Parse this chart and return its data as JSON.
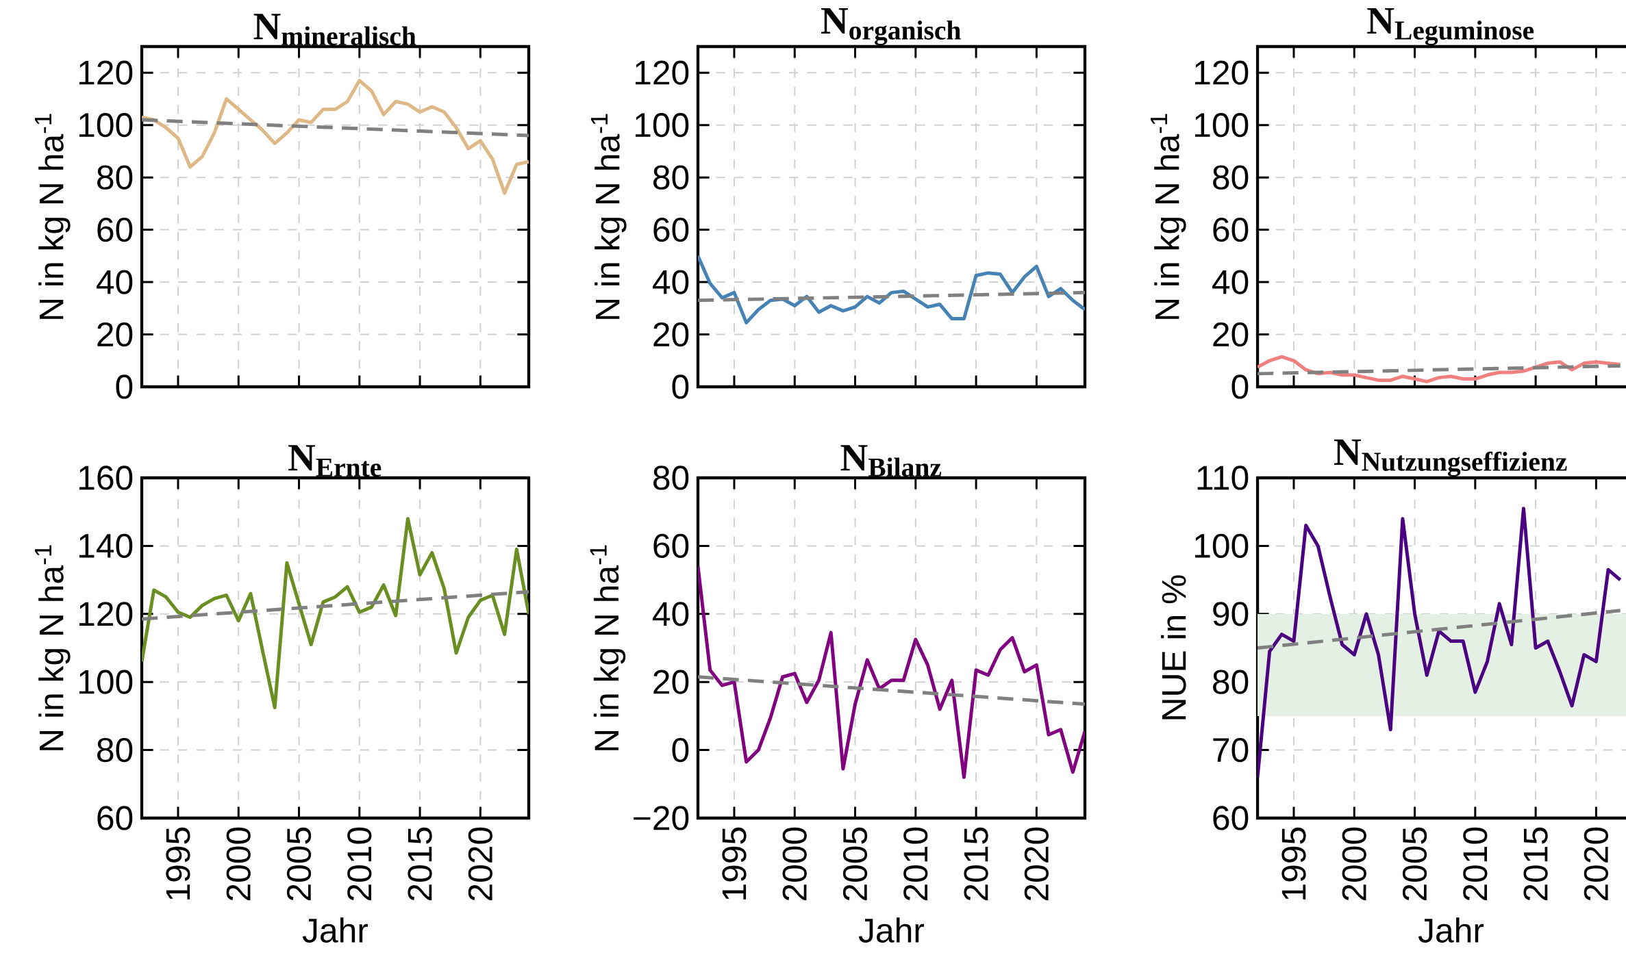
{
  "chart_data": [
    {
      "type": "line",
      "title": "\\mathbf{N_{mineralisch}}",
      "ylabel": "N in kg N ha$^{-1}$",
      "tick_labels": "y",
      "grid": true,
      "xlim": [
        1992,
        2024
      ],
      "ylim": [
        0,
        130
      ],
      "xticks": [
        1995,
        2000,
        2005,
        2010,
        2015,
        2020
      ],
      "yticks": [
        0,
        20,
        40,
        60,
        80,
        100,
        120
      ],
      "x": [
        1992,
        1993,
        1994,
        1995,
        1996,
        1997,
        1998,
        1999,
        2000,
        2001,
        2002,
        2003,
        2004,
        2005,
        2006,
        2007,
        2008,
        2009,
        2010,
        2011,
        2012,
        2013,
        2014,
        2015,
        2016,
        2017,
        2018,
        2019,
        2020,
        2021,
        2022,
        2023,
        2024
      ],
      "series": [
        {
          "color": "#deb887",
          "values": [
            103,
            102,
            99,
            95,
            84,
            88,
            97,
            110,
            106,
            102,
            98,
            93,
            97,
            102,
            101,
            106,
            106,
            109,
            117,
            113,
            104,
            109,
            108,
            105,
            107,
            105,
            99,
            91,
            94,
            87,
            74,
            85,
            86
          ]
        },
        {
          "type": "line",
          "line_style": "dashed",
          "color": "#808080",
          "x": [
            1992,
            2024
          ],
          "values": [
            102,
            96
          ]
        }
      ]
    },
    {
      "type": "line",
      "title": "\\mathbf{N_{organisch}}",
      "ylabel": "N in kg N ha$^{-1}$",
      "tick_labels": "y",
      "grid": true,
      "xlim": [
        1992,
        2024
      ],
      "ylim": [
        0,
        130
      ],
      "xticks": [
        1995,
        2000,
        2005,
        2010,
        2015,
        2020
      ],
      "yticks": [
        0,
        20,
        40,
        60,
        80,
        100,
        120
      ],
      "x": [
        1992,
        1993,
        1994,
        1995,
        1996,
        1997,
        1998,
        1999,
        2000,
        2001,
        2002,
        2003,
        2004,
        2005,
        2006,
        2007,
        2008,
        2009,
        2010,
        2011,
        2012,
        2013,
        2014,
        2015,
        2016,
        2017,
        2018,
        2019,
        2020,
        2021,
        2022,
        2023,
        2024
      ],
      "series": [
        {
          "color": "#4682b4",
          "values": [
            50,
            39.5,
            34,
            36,
            24.5,
            29.5,
            33,
            33.5,
            31,
            34.5,
            28.5,
            31,
            29,
            30.5,
            34.5,
            32,
            36,
            36.5,
            33.5,
            30.5,
            31.5,
            26,
            26,
            42.5,
            43.5,
            43,
            36,
            42,
            46,
            34.5,
            37.5,
            33,
            29.5
          ]
        },
        {
          "type": "line",
          "line_style": "dashed",
          "color": "#808080",
          "x": [
            1992,
            2024
          ],
          "values": [
            33,
            36
          ]
        }
      ]
    },
    {
      "type": "line",
      "title": "\\mathbf{N_{Leguminose}}",
      "ylabel": "N in kg N ha$^{-1}$",
      "tick_labels": "y",
      "grid": true,
      "xlim": [
        1992,
        2024
      ],
      "ylim": [
        0,
        130
      ],
      "xticks": [
        1995,
        2000,
        2005,
        2010,
        2015,
        2020
      ],
      "yticks": [
        0,
        20,
        40,
        60,
        80,
        100,
        120
      ],
      "series": [
        {
          "color": "#f08080",
          "x": [
            1992,
            1993,
            1994,
            1995,
            1996,
            1997,
            1998,
            1999,
            2000,
            2001,
            2002,
            2003,
            2004,
            2005,
            2006,
            2007,
            2008,
            2009,
            2010,
            2011,
            2012,
            2013,
            2014,
            2015,
            2016,
            2017,
            2018,
            2019,
            2020,
            2021,
            2022
          ],
          "values": [
            7.5,
            10,
            11.5,
            10,
            6.5,
            5,
            5.5,
            4.5,
            4.5,
            3.5,
            2.5,
            2.5,
            4,
            3,
            2,
            3.5,
            4,
            3,
            3,
            4.5,
            5.5,
            5.5,
            6,
            7.5,
            9,
            9.5,
            6.5,
            9,
            9.5,
            9,
            8.5
          ]
        },
        {
          "type": "line",
          "line_style": "dashed",
          "color": "#808080",
          "x": [
            1992,
            2022
          ],
          "values": [
            5,
            8
          ]
        }
      ]
    },
    {
      "type": "line",
      "title": "\\mathbf{N_{Ernte}}",
      "xlabel": "Jahr",
      "ylabel": "N in kg N ha$^{-1}$",
      "grid": true,
      "xlim": [
        1992,
        2024
      ],
      "ylim": [
        60,
        160
      ],
      "xticks": [
        1995,
        2000,
        2005,
        2010,
        2015,
        2020
      ],
      "yticks": [
        60,
        80,
        100,
        120,
        140,
        160
      ],
      "x": [
        1992,
        1993,
        1994,
        1995,
        1996,
        1997,
        1998,
        1999,
        2000,
        2001,
        2002,
        2003,
        2004,
        2005,
        2006,
        2007,
        2008,
        2009,
        2010,
        2011,
        2012,
        2013,
        2014,
        2015,
        2016,
        2017,
        2018,
        2019,
        2020,
        2021,
        2022,
        2023,
        2024
      ],
      "series": [
        {
          "color": "#6b8e23",
          "values": [
            106,
            127,
            125,
            120.5,
            119,
            122.5,
            124.5,
            125.5,
            118,
            126,
            109,
            92.5,
            135,
            123,
            111,
            123.5,
            125,
            128,
            120.5,
            122,
            128.5,
            119.5,
            148,
            131.5,
            138,
            127.5,
            108.5,
            119,
            124,
            125.5,
            114,
            139,
            120
          ]
        },
        {
          "type": "line",
          "line_style": "dashed",
          "color": "#808080",
          "x": [
            1992,
            2024
          ],
          "values": [
            118.5,
            126.5
          ]
        }
      ]
    },
    {
      "type": "line",
      "title": "\\mathbf{N_{Bilanz}}",
      "xlabel": "Jahr",
      "ylabel": "N in kg N ha$^{-1}$",
      "grid": true,
      "xlim": [
        1992,
        2024
      ],
      "ylim": [
        -20,
        80
      ],
      "xticks": [
        1995,
        2000,
        2005,
        2010,
        2015,
        2020
      ],
      "yticks": [
        {
          "value": -20,
          "label": "−20"
        },
        0,
        20,
        40,
        60,
        80
      ],
      "x": [
        1992,
        1993,
        1994,
        1995,
        1996,
        1997,
        1998,
        1999,
        2000,
        2001,
        2002,
        2003,
        2004,
        2005,
        2006,
        2007,
        2008,
        2009,
        2010,
        2011,
        2012,
        2013,
        2014,
        2015,
        2016,
        2017,
        2018,
        2019,
        2020,
        2021,
        2022,
        2023,
        2024
      ],
      "series": [
        {
          "color": "#800080",
          "values": [
            54,
            23.5,
            19,
            20,
            -3.5,
            0,
            9.5,
            21.5,
            22.5,
            14,
            20.5,
            34.5,
            -5.5,
            13.5,
            26.5,
            18,
            20.5,
            20.5,
            32.5,
            25,
            12,
            20.5,
            -8,
            23.5,
            22,
            29.5,
            33,
            23,
            25,
            4.5,
            6,
            -6.5,
            5.5
          ]
        },
        {
          "type": "line",
          "line_style": "dashed",
          "color": "#808080",
          "x": [
            1992,
            2024
          ],
          "values": [
            21.5,
            13.5
          ]
        }
      ]
    },
    {
      "type": "line",
      "title": "\\mathbf{N_{Nutzungseffizienz}}",
      "xlabel": "Jahr",
      "ylabel": "NUE in %",
      "grid": true,
      "xlim": [
        1992,
        2024
      ],
      "ylim": [
        60,
        110
      ],
      "xticks": [
        1995,
        2000,
        2005,
        2010,
        2015,
        2020
      ],
      "yticks": [
        60,
        70,
        80,
        90,
        100,
        110
      ],
      "bands": [
        {
          "axis": "y",
          "from": 75,
          "to": 90,
          "color": "#e5f0e5"
        }
      ],
      "series": [
        {
          "color": "#4b0082",
          "x": [
            1992,
            1993,
            1994,
            1995,
            1996,
            1997,
            1998,
            1999,
            2000,
            2001,
            2002,
            2003,
            2004,
            2005,
            2006,
            2007,
            2008,
            2009,
            2010,
            2011,
            2012,
            2013,
            2014,
            2015,
            2016,
            2017,
            2018,
            2019,
            2020,
            2021,
            2022
          ],
          "values": [
            66,
            84.5,
            87,
            86,
            103,
            100,
            92.5,
            85.5,
            84,
            90,
            84,
            73,
            104,
            90,
            81,
            87.5,
            86,
            86,
            78.5,
            83,
            91.5,
            85.5,
            105.5,
            85,
            86,
            81.5,
            76.5,
            84,
            83,
            96.5,
            95
          ]
        },
        {
          "type": "line",
          "line_style": "dashed",
          "color": "#808080",
          "x": [
            1992,
            2022
          ],
          "values": [
            85,
            90.5
          ]
        }
      ]
    }
  ]
}
